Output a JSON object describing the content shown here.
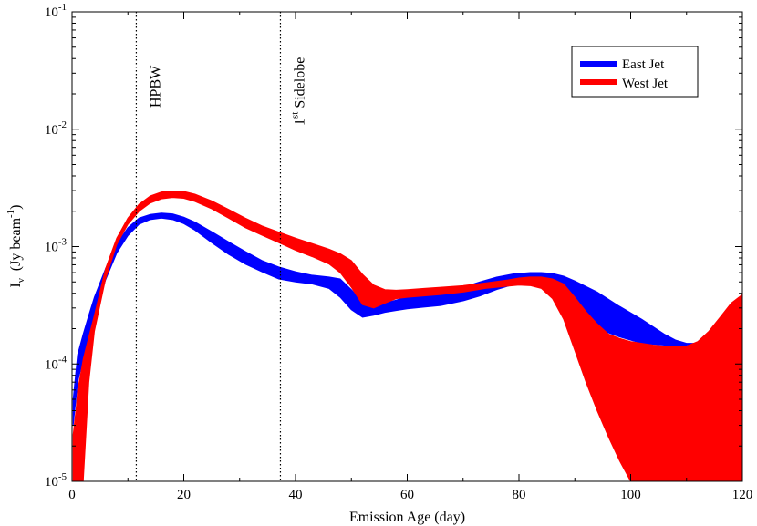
{
  "chart_data": {
    "type": "area",
    "xlabel": "Emission Age (day)",
    "ylabel": {
      "main": "I",
      "sub": "ν",
      "unit": "(Jy beam",
      "exp": "-1",
      "close": ")"
    },
    "xlim": [
      0,
      120
    ],
    "ylim": [
      1e-05,
      0.1
    ],
    "yscale": "log",
    "x_ticks": [
      0,
      20,
      40,
      60,
      80,
      100,
      120
    ],
    "x_tick_labels": [
      "0",
      "20",
      "40",
      "60",
      "80",
      "100",
      "120"
    ],
    "y_ticks": [
      1e-05,
      0.0001,
      0.001,
      0.01,
      0.1
    ],
    "y_tick_labels": [
      {
        "base": "10",
        "exp": "-5"
      },
      {
        "base": "10",
        "exp": "-4"
      },
      {
        "base": "10",
        "exp": "-3"
      },
      {
        "base": "10",
        "exp": "-2"
      },
      {
        "base": "10",
        "exp": "-1"
      }
    ],
    "grid": false,
    "legend_placement": "top-right",
    "vlines": [
      {
        "x": 11.5,
        "label": "HPBW",
        "label_sup": ""
      },
      {
        "x": 37.3,
        "label": "1",
        "label_sup": "st",
        "label_rest": " Sidelobe"
      }
    ],
    "series": [
      {
        "name": "East Jet",
        "color": "#0000ff",
        "x": [
          0.2,
          1,
          2,
          3,
          4,
          6,
          8,
          10,
          12,
          14,
          16,
          18,
          20,
          22,
          25,
          28,
          31,
          34,
          37,
          40,
          43,
          46,
          48,
          50,
          52,
          54,
          56,
          58,
          60,
          63,
          66,
          70,
          73,
          76,
          79,
          82,
          84,
          86,
          88,
          90,
          94,
          98,
          102,
          106,
          108,
          110,
          112,
          115,
          118,
          120
        ],
        "lower": [
          3e-05,
          7e-05,
          0.00011,
          0.00017,
          0.00026,
          0.00052,
          0.00088,
          0.00124,
          0.00155,
          0.0017,
          0.00175,
          0.0017,
          0.00157,
          0.00138,
          0.00108,
          0.00086,
          0.00071,
          0.00061,
          0.00053,
          0.0005,
          0.00048,
          0.00044,
          0.00037,
          0.00029,
          0.00025,
          0.00026,
          0.000275,
          0.000285,
          0.000295,
          0.000305,
          0.000315,
          0.000345,
          0.00038,
          0.00043,
          0.000475,
          0.0005,
          0.00048,
          0.00042,
          0.00034,
          0.00027,
          0.0002,
          0.00017,
          0.00015,
          0.000145,
          0.000142,
          0.000145,
          0.00015,
          0.00016,
          0.00017,
          0.000175
        ],
        "upper": [
          5e-05,
          0.00012,
          0.00018,
          0.00026,
          0.00037,
          0.00065,
          0.00105,
          0.00145,
          0.00175,
          0.00188,
          0.00193,
          0.0019,
          0.00178,
          0.00162,
          0.00134,
          0.0011,
          0.00091,
          0.00076,
          0.00067,
          0.00061,
          0.00057,
          0.00055,
          0.00053,
          0.00043,
          0.00034,
          0.00032,
          0.00033,
          0.00035,
          0.000375,
          0.000395,
          0.00042,
          0.00045,
          0.0005,
          0.00055,
          0.000585,
          0.0006,
          0.0006,
          0.00059,
          0.00056,
          0.00051,
          0.00041,
          0.00031,
          0.00024,
          0.00018,
          0.00016,
          0.00015,
          0.00015,
          0.00016,
          0.00017,
          0.000175
        ]
      },
      {
        "name": "West Jet",
        "color": "#ff0000",
        "x": [
          0.2,
          0.7,
          1,
          1.5,
          2,
          3,
          4,
          6,
          8,
          10,
          12,
          14,
          16,
          18,
          20,
          22,
          25,
          28,
          31,
          34,
          37,
          40,
          43,
          46,
          48,
          50,
          52,
          54,
          56,
          58,
          60,
          63,
          66,
          70,
          74,
          78,
          80,
          82,
          84,
          86,
          88,
          90,
          92,
          94,
          96,
          98,
          100,
          102,
          104,
          106,
          108,
          110,
          112,
          114,
          116,
          118,
          120
        ],
        "lower": [
          1e-05,
          1e-05,
          1e-05,
          1e-05,
          1e-05,
          7e-05,
          0.00019,
          0.00053,
          0.00104,
          0.00155,
          0.002,
          0.00235,
          0.00255,
          0.00262,
          0.00258,
          0.00242,
          0.0021,
          0.00175,
          0.00145,
          0.00125,
          0.00108,
          0.00093,
          0.00082,
          0.00071,
          0.0006,
          0.00045,
          0.00032,
          0.0003,
          0.00033,
          0.00036,
          0.00037,
          0.00038,
          0.00039,
          0.00041,
          0.00044,
          0.00046,
          0.00047,
          0.000465,
          0.00044,
          0.00036,
          0.00024,
          0.00013,
          7e-05,
          4e-05,
          2.4e-05,
          1.5e-05,
          1e-05,
          1e-05,
          1e-05,
          1e-05,
          1e-05,
          1e-05,
          1e-05,
          1e-05,
          1e-05,
          1e-05,
          1e-05
        ],
        "upper": [
          2.5e-05,
          4e-05,
          6e-05,
          8e-05,
          0.00011,
          0.00017,
          0.00026,
          0.00065,
          0.00118,
          0.00175,
          0.0023,
          0.0027,
          0.00292,
          0.00298,
          0.00295,
          0.0028,
          0.00245,
          0.00208,
          0.00175,
          0.0015,
          0.00133,
          0.00118,
          0.00106,
          0.00095,
          0.00087,
          0.00076,
          0.00058,
          0.00047,
          0.00043,
          0.000425,
          0.00043,
          0.00044,
          0.00045,
          0.000465,
          0.00049,
          0.00052,
          0.00054,
          0.00055,
          0.00055,
          0.00053,
          0.00048,
          0.00037,
          0.00028,
          0.00022,
          0.00018,
          0.000165,
          0.000155,
          0.00015,
          0.000145,
          0.000142,
          0.00014,
          0.000142,
          0.000155,
          0.00019,
          0.00025,
          0.00033,
          0.00039
        ]
      }
    ]
  }
}
